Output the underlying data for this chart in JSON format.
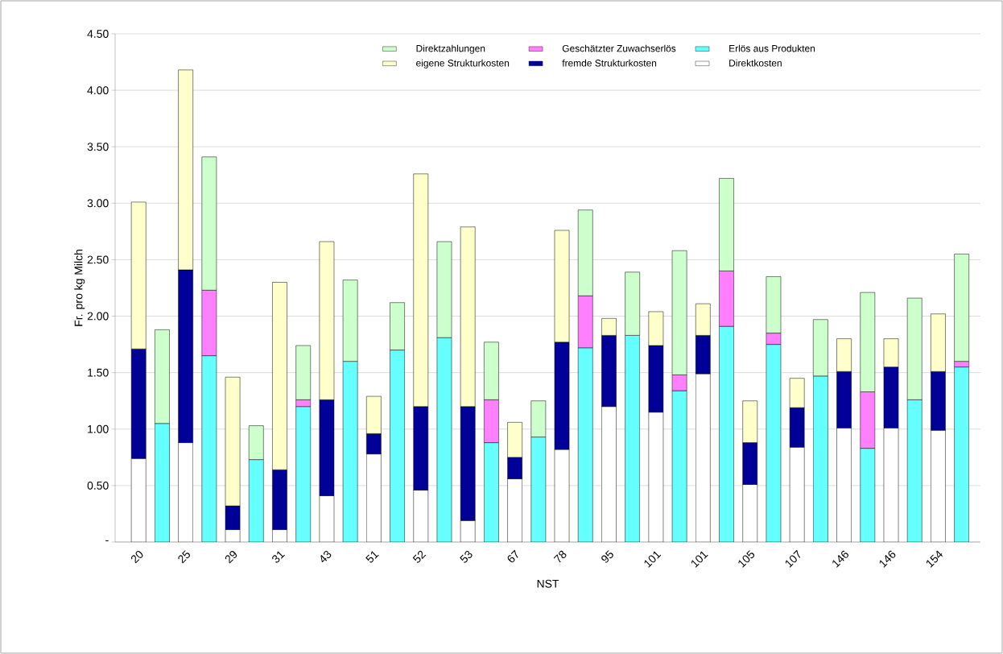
{
  "chart_data": {
    "type": "bar",
    "stacked": true,
    "xlabel": "NST",
    "ylabel": "Fr. pro kg Milch",
    "categories": [
      "20",
      null,
      "25",
      null,
      "29",
      null,
      "31",
      null,
      "43",
      null,
      "51",
      null,
      "52",
      null,
      "53",
      null,
      "67",
      null,
      "78",
      null,
      "95",
      null,
      "101",
      null,
      "101",
      null,
      "105",
      null,
      "107",
      null,
      "146",
      null,
      "146",
      null,
      "154",
      null
    ],
    "series": [
      {
        "name": "Direktkosten",
        "color": "#ffffff",
        "values": [
          0.74,
          null,
          0.88,
          null,
          0.11,
          null,
          0.11,
          null,
          0.41,
          null,
          0.78,
          null,
          0.46,
          null,
          0.19,
          null,
          0.56,
          null,
          0.82,
          null,
          1.2,
          null,
          1.15,
          null,
          1.49,
          null,
          0.51,
          null,
          0.84,
          null,
          1.01,
          null,
          1.01,
          null,
          0.99,
          null
        ]
      },
      {
        "name": "fremde Strukturkosten",
        "color": "#000099",
        "values": [
          0.97,
          null,
          1.53,
          null,
          0.21,
          null,
          0.53,
          null,
          0.85,
          null,
          0.18,
          null,
          0.74,
          null,
          1.01,
          null,
          0.19,
          null,
          0.95,
          null,
          0.63,
          null,
          0.59,
          null,
          0.34,
          null,
          0.37,
          null,
          0.35,
          null,
          0.5,
          null,
          0.54,
          null,
          0.52,
          null
        ]
      },
      {
        "name": "eigene Strukturkosten",
        "color": "#ffffcc",
        "values": [
          1.3,
          null,
          1.77,
          null,
          1.14,
          null,
          1.66,
          null,
          1.4,
          null,
          0.33,
          null,
          2.06,
          null,
          1.59,
          null,
          0.31,
          null,
          0.99,
          null,
          0.15,
          null,
          0.3,
          null,
          0.28,
          null,
          0.37,
          null,
          0.26,
          null,
          0.29,
          null,
          0.25,
          null,
          0.51,
          null
        ]
      },
      {
        "name": "Erlös aus Produkten",
        "color": "#66ffff",
        "values": [
          null,
          1.05,
          null,
          1.65,
          null,
          0.73,
          null,
          1.2,
          null,
          1.6,
          null,
          1.7,
          null,
          1.81,
          null,
          0.88,
          null,
          0.93,
          null,
          1.72,
          null,
          1.83,
          null,
          1.34,
          null,
          1.91,
          null,
          1.75,
          null,
          1.47,
          null,
          0.83,
          null,
          1.26,
          null,
          1.55
        ]
      },
      {
        "name": "Geschätzter Zuwachserlös",
        "color": "#ff80ff",
        "values": [
          null,
          null,
          null,
          0.58,
          null,
          null,
          null,
          0.06,
          null,
          null,
          null,
          null,
          null,
          null,
          null,
          0.38,
          null,
          null,
          null,
          0.46,
          null,
          null,
          null,
          0.14,
          null,
          0.49,
          null,
          0.1,
          null,
          null,
          null,
          0.5,
          null,
          null,
          null,
          0.05
        ]
      },
      {
        "name": "Direktzahlungen",
        "color": "#ccffcc",
        "values": [
          null,
          0.83,
          null,
          1.18,
          null,
          0.3,
          null,
          0.48,
          null,
          0.72,
          null,
          0.42,
          null,
          0.85,
          null,
          0.51,
          null,
          0.32,
          null,
          0.76,
          null,
          0.56,
          null,
          1.1,
          null,
          0.82,
          null,
          0.5,
          null,
          0.5,
          null,
          0.88,
          null,
          0.9,
          null,
          0.95
        ]
      }
    ],
    "ylim": [
      0,
      4.5
    ],
    "yticks": [
      {
        "value": 0,
        "label": "-"
      },
      {
        "value": 0.5,
        "label": "0.50"
      },
      {
        "value": 1,
        "label": "1.00"
      },
      {
        "value": 1.5,
        "label": "1.50"
      },
      {
        "value": 2,
        "label": "2.00"
      },
      {
        "value": 2.5,
        "label": "2.50"
      },
      {
        "value": 3,
        "label": "3.00"
      },
      {
        "value": 3.5,
        "label": "3.50"
      },
      {
        "value": 4,
        "label": "4.00"
      },
      {
        "value": 4.5,
        "label": "4.50"
      }
    ],
    "grid": "y",
    "legend": "top"
  }
}
